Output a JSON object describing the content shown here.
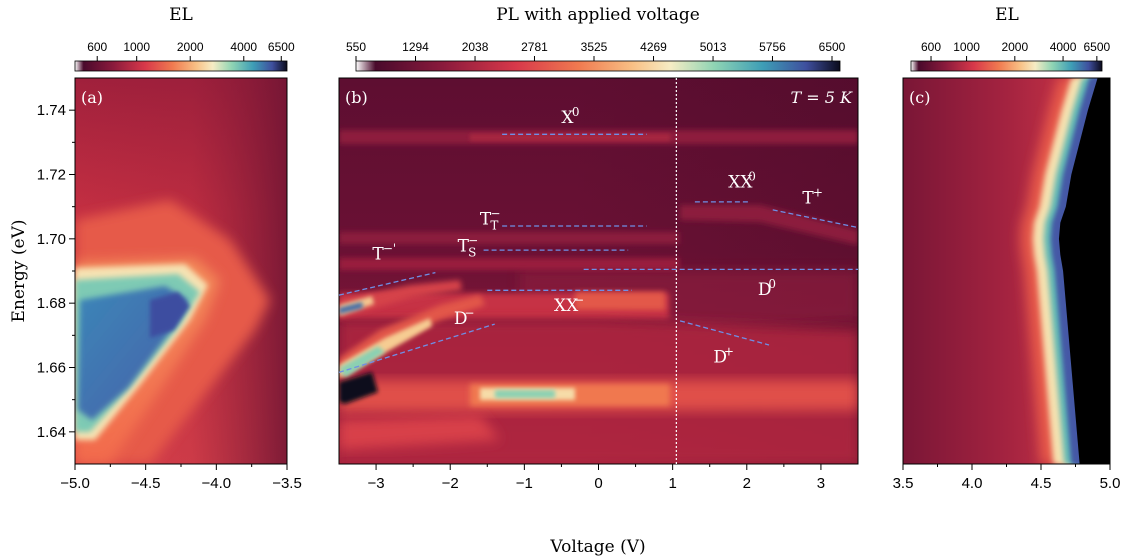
{
  "chart_data": [
    {
      "panel": "(a)",
      "type": "heatmap",
      "title": "EL",
      "xlabel": "",
      "ylabel": "Energy (eV)",
      "xlim": [
        -5.0,
        -3.5
      ],
      "ylim": [
        1.63,
        1.75
      ],
      "x_ticks": [
        "−5.0",
        "−4.5",
        "−4.0",
        "−3.5"
      ],
      "y_ticks": [
        "1.64",
        "1.66",
        "1.68",
        "1.70",
        "1.72",
        "1.74"
      ],
      "colorbar": {
        "scale": "log",
        "range": [
          450,
          7000
        ],
        "ticks": [
          "600",
          "1000",
          "2000",
          "4000",
          "6500"
        ]
      }
    },
    {
      "panel": "(b)",
      "type": "heatmap",
      "title": "PL with applied voltage",
      "xlabel": "Voltage (V)",
      "xlim": [
        -3.5,
        3.5
      ],
      "ylim": [
        1.63,
        1.75
      ],
      "x_ticks": [
        "−3",
        "−2",
        "−1",
        "0",
        "1",
        "2",
        "3"
      ],
      "temperature_label": "T = 5 K",
      "vertical_marker_V": 1.05,
      "colorbar": {
        "scale": "linear",
        "range": [
          550,
          6600
        ],
        "ticks": [
          "550",
          "1294",
          "2038",
          "2781",
          "3525",
          "4269",
          "5013",
          "5756",
          "6500"
        ]
      },
      "annotations": [
        {
          "label": "X",
          "sup": "0",
          "sub": "",
          "x": -0.5,
          "y": 1.736,
          "line": [
            [
              -1.3,
              1.7325
            ],
            [
              0.65,
              1.7325
            ]
          ]
        },
        {
          "label": "XX",
          "sup": "0",
          "sub": "",
          "x": 1.75,
          "y": 1.716,
          "line": [
            [
              1.3,
              1.7115
            ],
            [
              2.05,
              1.7115
            ]
          ]
        },
        {
          "label": "T",
          "sup": "+",
          "sub": "",
          "x": 2.75,
          "y": 1.711,
          "line": [
            [
              2.35,
              1.709
            ],
            [
              3.5,
              1.7035
            ]
          ]
        },
        {
          "label": "T",
          "sup": "−",
          "sub": "T",
          "x": -1.6,
          "y": 1.7045,
          "line": [
            [
              -1.3,
              1.704
            ],
            [
              0.65,
              1.704
            ]
          ]
        },
        {
          "label": "T",
          "sup": "−",
          "sub": "S",
          "x": -1.9,
          "y": 1.696,
          "line": [
            [
              -1.55,
              1.6965
            ],
            [
              0.4,
              1.6965
            ]
          ]
        },
        {
          "label": "T",
          "sup": "−'",
          "sub": "",
          "x": -3.05,
          "y": 1.6935,
          "line": [
            [
              -3.5,
              1.6825
            ],
            [
              -2.2,
              1.6895
            ]
          ]
        },
        {
          "label": "D",
          "sup": "0",
          "sub": "",
          "x": 2.15,
          "y": 1.6825,
          "line": [
            [
              -0.2,
              1.6905
            ],
            [
              3.5,
              1.6905
            ]
          ]
        },
        {
          "label": "XX",
          "sup": "−",
          "sub": "",
          "x": -0.6,
          "y": 1.6775,
          "line": [
            [
              -1.5,
              1.684
            ],
            [
              0.45,
              1.684
            ]
          ]
        },
        {
          "label": "D",
          "sup": "−",
          "sub": "",
          "x": -1.95,
          "y": 1.6735,
          "line": [
            [
              -3.5,
              1.6585
            ],
            [
              -1.4,
              1.6735
            ]
          ]
        },
        {
          "label": "D",
          "sup": "+",
          "sub": "",
          "x": 1.55,
          "y": 1.6615,
          "line": [
            [
              1.1,
              1.6745
            ],
            [
              2.3,
              1.667
            ]
          ]
        }
      ]
    },
    {
      "panel": "(c)",
      "type": "heatmap",
      "title": "EL",
      "xlabel": "",
      "xlim": [
        3.5,
        5.0
      ],
      "ylim": [
        1.63,
        1.75
      ],
      "x_ticks": [
        "3.5",
        "4.0",
        "4.5",
        "5.0"
      ],
      "colorbar": {
        "scale": "log",
        "range": [
          450,
          7000
        ],
        "ticks": [
          "600",
          "1000",
          "2000",
          "4000",
          "6500"
        ]
      }
    }
  ]
}
